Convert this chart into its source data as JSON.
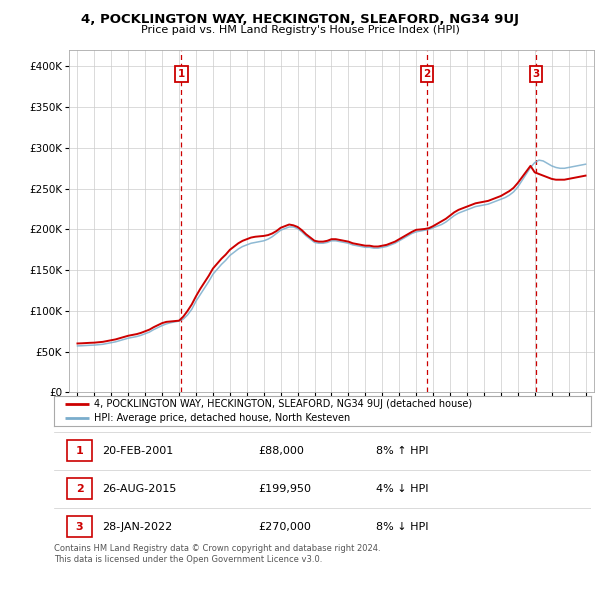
{
  "title": "4, POCKLINGTON WAY, HECKINGTON, SLEAFORD, NG34 9UJ",
  "subtitle": "Price paid vs. HM Land Registry's House Price Index (HPI)",
  "hpi_label": "HPI: Average price, detached house, North Kesteven",
  "property_label": "4, POCKLINGTON WAY, HECKINGTON, SLEAFORD, NG34 9UJ (detached house)",
  "footer1": "Contains HM Land Registry data © Crown copyright and database right 2024.",
  "footer2": "This data is licensed under the Open Government Licence v3.0.",
  "sale_markers": [
    {
      "num": 1,
      "date": "20-FEB-2001",
      "price": 88000,
      "price_str": "£88,000",
      "pct": "8%",
      "dir": "↑",
      "x": 2001.13
    },
    {
      "num": 2,
      "date": "26-AUG-2015",
      "price": 199950,
      "price_str": "£199,950",
      "pct": "4%",
      "dir": "↓",
      "x": 2015.65
    },
    {
      "num": 3,
      "date": "28-JAN-2022",
      "price": 270000,
      "price_str": "£270,000",
      "pct": "8%",
      "dir": "↓",
      "x": 2022.07
    }
  ],
  "ylim": [
    0,
    420000
  ],
  "xlim": [
    1994.5,
    2025.5
  ],
  "red_line_color": "#cc0000",
  "blue_line_color": "#7aadcc",
  "grid_color": "#cccccc",
  "bg_color": "#ffffff",
  "years_hpi": [
    1995.0,
    1995.25,
    1995.5,
    1995.75,
    1996.0,
    1996.25,
    1996.5,
    1996.75,
    1997.0,
    1997.25,
    1997.5,
    1997.75,
    1998.0,
    1998.25,
    1998.5,
    1998.75,
    1999.0,
    1999.25,
    1999.5,
    1999.75,
    2000.0,
    2000.25,
    2000.5,
    2000.75,
    2001.0,
    2001.25,
    2001.5,
    2001.75,
    2002.0,
    2002.25,
    2002.5,
    2002.75,
    2003.0,
    2003.25,
    2003.5,
    2003.75,
    2004.0,
    2004.25,
    2004.5,
    2004.75,
    2005.0,
    2005.25,
    2005.5,
    2005.75,
    2006.0,
    2006.25,
    2006.5,
    2006.75,
    2007.0,
    2007.25,
    2007.5,
    2007.75,
    2008.0,
    2008.25,
    2008.5,
    2008.75,
    2009.0,
    2009.25,
    2009.5,
    2009.75,
    2010.0,
    2010.25,
    2010.5,
    2010.75,
    2011.0,
    2011.25,
    2011.5,
    2011.75,
    2012.0,
    2012.25,
    2012.5,
    2012.75,
    2013.0,
    2013.25,
    2013.5,
    2013.75,
    2014.0,
    2014.25,
    2014.5,
    2014.75,
    2015.0,
    2015.25,
    2015.5,
    2015.75,
    2016.0,
    2016.25,
    2016.5,
    2016.75,
    2017.0,
    2017.25,
    2017.5,
    2017.75,
    2018.0,
    2018.25,
    2018.5,
    2018.75,
    2019.0,
    2019.25,
    2019.5,
    2019.75,
    2020.0,
    2020.25,
    2020.5,
    2020.75,
    2021.0,
    2021.25,
    2021.5,
    2021.75,
    2022.0,
    2022.25,
    2022.5,
    2022.75,
    2023.0,
    2023.25,
    2023.5,
    2023.75,
    2024.0,
    2024.25,
    2024.5,
    2024.75,
    2025.0
  ],
  "hpi_values": [
    57000,
    57200,
    57500,
    57800,
    58000,
    58500,
    59000,
    60000,
    61000,
    62000,
    63500,
    65000,
    66500,
    67500,
    68500,
    70000,
    72000,
    74000,
    77000,
    79500,
    82000,
    84000,
    85500,
    86500,
    87500,
    90000,
    95000,
    102000,
    112000,
    120000,
    128000,
    136000,
    145000,
    151000,
    157000,
    162000,
    168000,
    172000,
    176000,
    179000,
    181000,
    183000,
    184000,
    185000,
    186000,
    188000,
    191000,
    195000,
    199000,
    201000,
    203000,
    203000,
    201000,
    197000,
    192000,
    188000,
    184000,
    183000,
    183000,
    184000,
    186000,
    186000,
    185000,
    184000,
    183000,
    181000,
    180000,
    179000,
    178000,
    178000,
    177000,
    177000,
    178000,
    179000,
    181000,
    183000,
    186000,
    189000,
    192000,
    195000,
    197000,
    198000,
    199000,
    200000,
    202000,
    204000,
    206000,
    209000,
    213000,
    217000,
    220000,
    222000,
    224000,
    226000,
    228000,
    229000,
    230000,
    231000,
    233000,
    235000,
    237000,
    239000,
    242000,
    246000,
    252000,
    260000,
    268000,
    276000,
    282000,
    285000,
    284000,
    281000,
    278000,
    276000,
    275000,
    275000,
    276000,
    277000,
    278000,
    279000,
    280000
  ],
  "red_values": [
    60000,
    60200,
    60500,
    60800,
    61000,
    61500,
    62000,
    63000,
    64000,
    65000,
    66500,
    68000,
    69500,
    70500,
    71500,
    73000,
    75000,
    77000,
    80000,
    82500,
    85000,
    86500,
    87000,
    87500,
    88000,
    93000,
    100000,
    108000,
    118000,
    127000,
    135000,
    143000,
    152000,
    158000,
    164000,
    169000,
    175000,
    179000,
    183000,
    186000,
    188000,
    190000,
    191000,
    191500,
    192000,
    193000,
    195000,
    198000,
    202000,
    204000,
    206000,
    205000,
    203000,
    199000,
    194000,
    190000,
    186000,
    185000,
    185000,
    186000,
    188000,
    188000,
    187000,
    186000,
    185000,
    183000,
    182000,
    181000,
    180000,
    180000,
    179000,
    179000,
    180000,
    181000,
    183000,
    185000,
    188000,
    191000,
    194000,
    197000,
    199500,
    199950,
    200500,
    201500,
    204000,
    207000,
    210000,
    213000,
    217000,
    221000,
    224000,
    226000,
    228000,
    230000,
    232000,
    233000,
    234000,
    235000,
    237000,
    239000,
    241000,
    244000,
    247000,
    251000,
    257000,
    264000,
    271000,
    278000,
    270000,
    268000,
    266000,
    264000,
    262000,
    261000,
    261000,
    261000,
    262000,
    263000,
    264000,
    265000,
    266000
  ]
}
